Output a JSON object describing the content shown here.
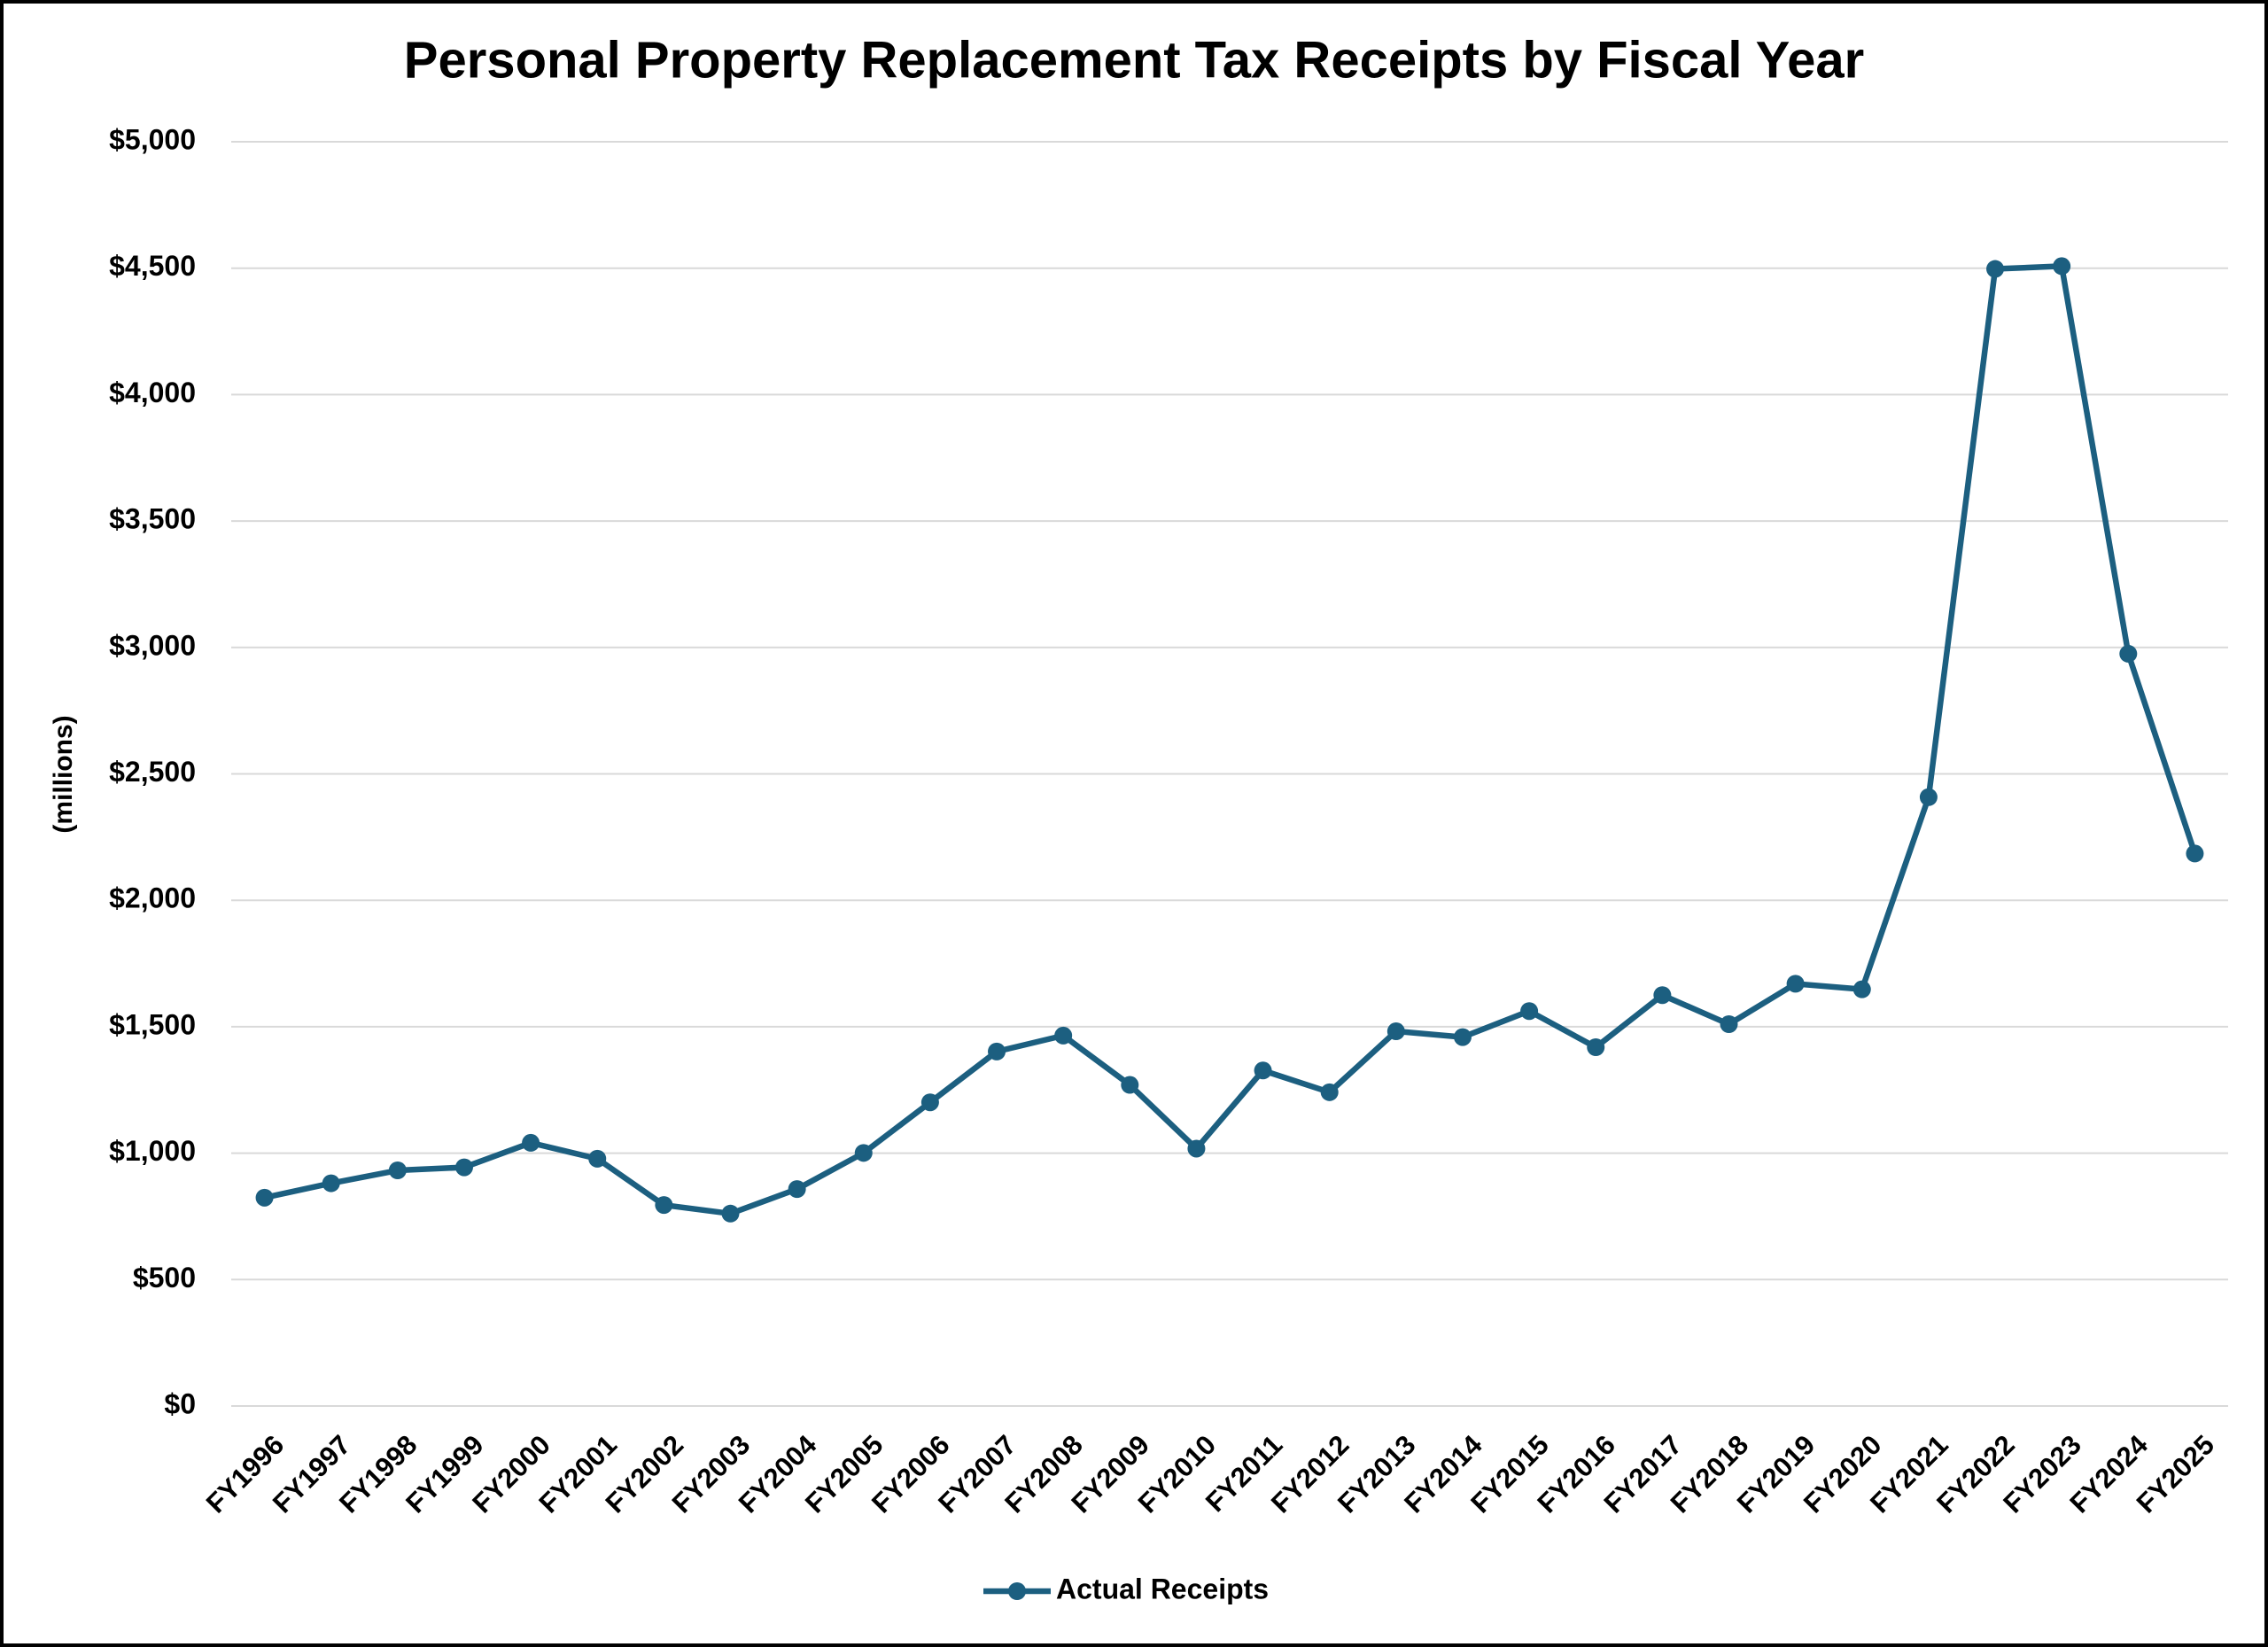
{
  "chart_data": {
    "type": "line",
    "title": "Personal Property Replacement Tax Receipts by Fiscal Year",
    "y_label": "(millions)",
    "categories": [
      "FY1996",
      "FY1997",
      "FY1998",
      "FY1999",
      "FY2000",
      "FY2001",
      "FY2002",
      "FY2003",
      "FY2004",
      "FY2005",
      "FY2006",
      "FY2007",
      "FY2008",
      "FY2009",
      "FY2010",
      "FY2011",
      "FY2012",
      "FY2013",
      "FY2014",
      "FY2015",
      "FY2016",
      "FY2017",
      "FY2018",
      "FY2019",
      "FY2020",
      "FY2021",
      "FY2022",
      "FY2023",
      "FY2024",
      "FY2025"
    ],
    "series": [
      {
        "name": "Actual Receipts",
        "color": "#1c5f80",
        "values": [
          824,
          881,
          932,
          944,
          1041,
          978,
          795,
          761,
          858,
          1001,
          1201,
          1402,
          1465,
          1270,
          1018,
          1327,
          1241,
          1482,
          1459,
          1562,
          1419,
          1625,
          1510,
          1670,
          1648,
          2408,
          4497,
          4508,
          2975,
          2185
        ]
      }
    ],
    "ylim": [
      0,
      5000
    ],
    "yticks": [
      {
        "value": 0,
        "label": "$0"
      },
      {
        "value": 500,
        "label": "$500"
      },
      {
        "value": 1000,
        "label": "$1,000"
      },
      {
        "value": 1500,
        "label": "$1,500"
      },
      {
        "value": 2000,
        "label": "$2,000"
      },
      {
        "value": 2500,
        "label": "$2,500"
      },
      {
        "value": 3000,
        "label": "$3,000"
      },
      {
        "value": 3500,
        "label": "$3,500"
      },
      {
        "value": 4000,
        "label": "$4,000"
      },
      {
        "value": 4500,
        "label": "$4,500"
      },
      {
        "value": 5000,
        "label": "$5,000"
      }
    ],
    "grid": true,
    "legend": "bottom"
  }
}
